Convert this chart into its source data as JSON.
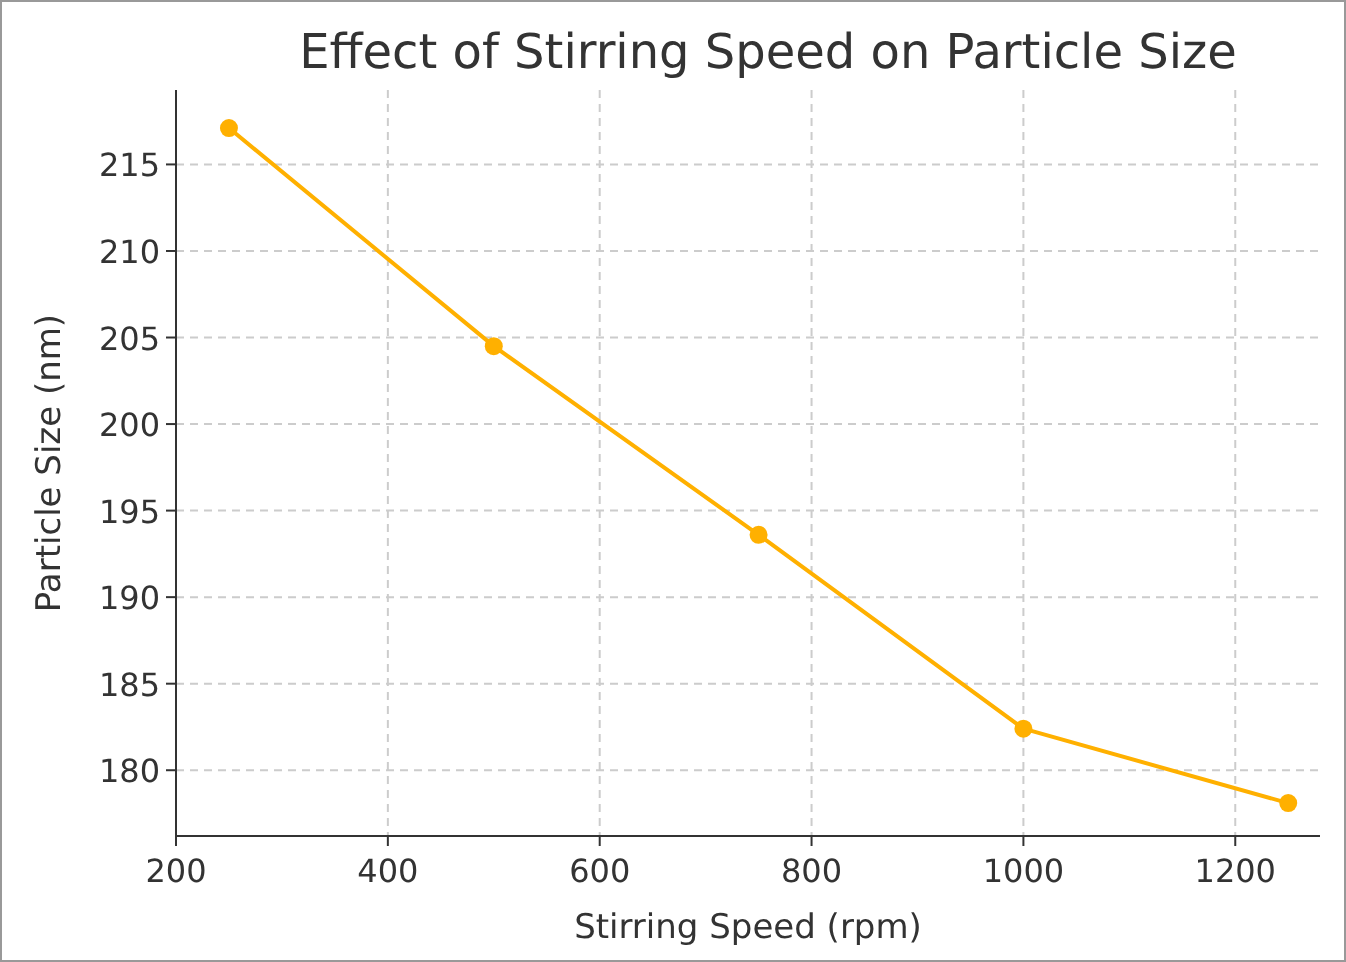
{
  "chart_data": {
    "type": "line",
    "title": "Effect of Stirring Speed on Particle Size",
    "xlabel": "Stirring Speed (rpm)",
    "ylabel": "Particle Size (nm)",
    "x": [
      250,
      500,
      750,
      1000,
      1250
    ],
    "series": [
      {
        "color": "#ffb000",
        "values": [
          217.1,
          204.5,
          193.6,
          182.4,
          178.1
        ]
      }
    ],
    "xlim": [
      200,
      1280
    ],
    "xticks": [
      200,
      400,
      600,
      800,
      1000,
      1200
    ],
    "ylim": [
      176.2,
      219.3
    ],
    "yticks": [
      180,
      185,
      190,
      195,
      200,
      205,
      210,
      215
    ],
    "grid": true,
    "marker": "circle",
    "line_style": "solid"
  }
}
